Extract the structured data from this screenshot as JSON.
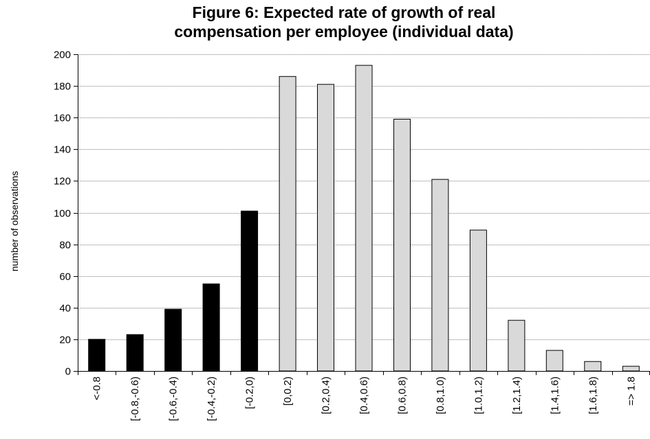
{
  "chart_data": {
    "type": "bar",
    "title_lines": [
      "Figure 6: Expected rate of growth of real",
      "compensation per employee (individual data)"
    ],
    "xlabel": "",
    "ylabel": "number of observations",
    "ylim": [
      0,
      200
    ],
    "y_ticks": [
      "0",
      "20",
      "40",
      "60",
      "80",
      "100",
      "120",
      "140",
      "160",
      "180",
      "200"
    ],
    "grid": "horizontal",
    "categories": [
      "<-0.8",
      "[-0.8,-0.6)",
      "[-0.6,-0.4)",
      "[-0.4,-0.2)",
      "[-0.2,0)",
      "[0,0.2)",
      "[0.2,0.4)",
      "[0.4,0.6)",
      "[0.6,0.8)",
      "[0.8,1.0)",
      "[1.0,1.2)",
      "[1.2,1.4)",
      "[1.4,1.6)",
      "[1.6,1.8)",
      "=> 1.8"
    ],
    "values": [
      20,
      23,
      39,
      55,
      101,
      186,
      181,
      193,
      159,
      121,
      89,
      32,
      13,
      6,
      3
    ],
    "colors": {
      "negative": "#000000",
      "positive": "#d9d9d9",
      "bar_border": "#000000",
      "grid": "#808080"
    }
  }
}
